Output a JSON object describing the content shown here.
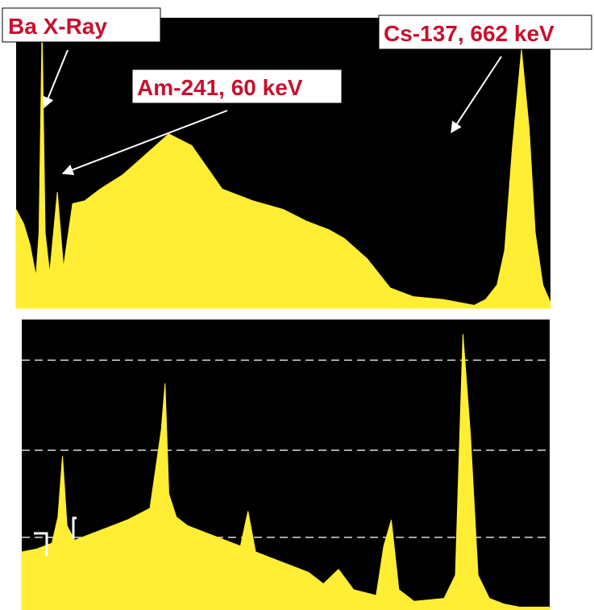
{
  "chart_data": [
    {
      "type": "area",
      "title": "",
      "xlabel": "",
      "ylabel": "",
      "xlim": [
        0,
        700
      ],
      "ylim": [
        0,
        1
      ],
      "grid": false,
      "background_color": "#000000",
      "series_color": "#ffee33",
      "x": [
        0,
        10,
        18,
        26,
        30,
        34,
        38,
        44,
        54,
        62,
        74,
        90,
        110,
        140,
        170,
        200,
        230,
        270,
        310,
        350,
        380,
        410,
        430,
        460,
        490,
        520,
        560,
        600,
        615,
        630,
        640,
        650,
        662,
        672,
        680,
        690,
        700
      ],
      "values": [
        0.34,
        0.29,
        0.22,
        0.11,
        0.26,
        0.97,
        0.26,
        0.12,
        0.4,
        0.14,
        0.36,
        0.37,
        0.41,
        0.46,
        0.53,
        0.6,
        0.56,
        0.41,
        0.37,
        0.34,
        0.3,
        0.27,
        0.24,
        0.17,
        0.07,
        0.04,
        0.03,
        0.01,
        0.03,
        0.08,
        0.2,
        0.55,
        0.89,
        0.62,
        0.26,
        0.08,
        0.02
      ],
      "annotations": [
        {
          "text": "Ba X-Ray",
          "x": 33,
          "y": 0.97
        },
        {
          "text": "Am-241, 60 keV",
          "x": 60,
          "y": 0.4
        },
        {
          "text": "Cs-137, 662 keV",
          "x": 662,
          "y": 0.89
        }
      ]
    },
    {
      "type": "area",
      "title": "",
      "xlabel": "",
      "ylabel": "",
      "xlim": [
        0,
        700
      ],
      "ylim": [
        0,
        1
      ],
      "grid": true,
      "gridlines_y": [
        0.25,
        0.55,
        0.86
      ],
      "background_color": "#000000",
      "series_color": "#ffee33",
      "x": [
        0,
        20,
        40,
        48,
        54,
        60,
        70,
        90,
        110,
        140,
        170,
        185,
        190,
        195,
        205,
        220,
        260,
        290,
        300,
        310,
        340,
        380,
        400,
        420,
        440,
        470,
        480,
        490,
        500,
        520,
        560,
        575,
        585,
        595,
        605,
        620,
        640,
        660,
        700
      ],
      "values": [
        0.2,
        0.21,
        0.23,
        0.32,
        0.53,
        0.29,
        0.24,
        0.26,
        0.28,
        0.31,
        0.35,
        0.62,
        0.78,
        0.4,
        0.32,
        0.29,
        0.25,
        0.22,
        0.34,
        0.2,
        0.17,
        0.13,
        0.09,
        0.14,
        0.07,
        0.05,
        0.22,
        0.31,
        0.07,
        0.03,
        0.04,
        0.12,
        0.95,
        0.6,
        0.12,
        0.04,
        0.02,
        0.01,
        0.01
      ],
      "annotations": []
    }
  ]
}
